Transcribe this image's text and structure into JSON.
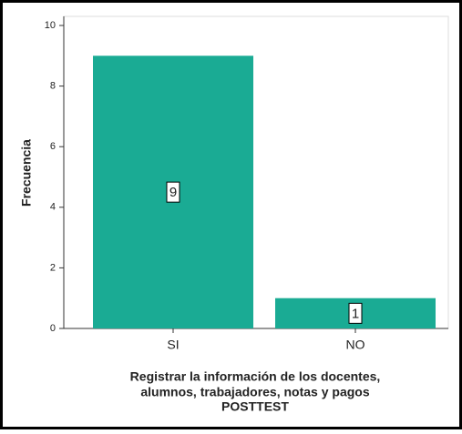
{
  "chart_data": {
    "type": "bar",
    "y_label": "Frecuencia",
    "x_label": [
      "Registrar la información de los docentes,",
      "alumnos, trabajadores, notas y pagos",
      "POSTTEST"
    ],
    "categories": [
      "SI",
      "NO"
    ],
    "values": [
      9,
      1
    ],
    "color": "#1aab94",
    "ylim": [
      0,
      10
    ],
    "yticks": [
      0,
      2,
      4,
      6,
      8,
      10
    ],
    "grid": false
  }
}
